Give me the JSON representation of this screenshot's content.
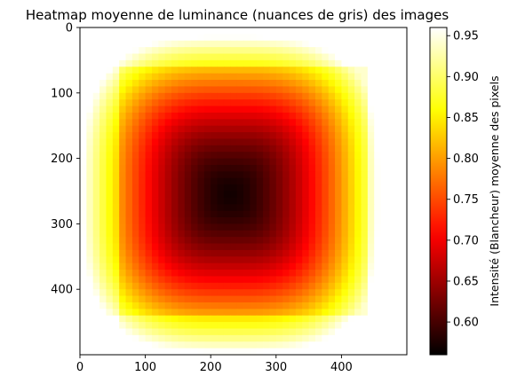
{
  "chart_data": {
    "type": "heatmap",
    "title": "Heatmap moyenne de luminance (nuances de gris) des images",
    "xlabel": "",
    "ylabel": "",
    "colormap": "hot",
    "xlim": [
      0,
      500
    ],
    "ylim": [
      500,
      0
    ],
    "xticks": [
      0,
      100,
      200,
      300,
      400
    ],
    "yticks": [
      0,
      100,
      200,
      300,
      400
    ],
    "image_size": [
      500,
      500
    ],
    "inner_border_rows": [
      62,
      435
    ],
    "inner_border_cols": [
      62,
      435
    ],
    "center": [
      230,
      255
    ],
    "value_range": [
      0.56,
      0.96
    ],
    "min_value": 0.57,
    "max_value": 0.96,
    "colorbar": {
      "label": "Intensité (Blancheur) moyenne des pixels",
      "ticks": [
        0.6,
        0.65,
        0.7,
        0.75,
        0.8,
        0.85,
        0.9,
        0.95
      ],
      "tick_labels": [
        "0.60",
        "0.65",
        "0.70",
        "0.75",
        "0.80",
        "0.85",
        "0.90",
        "0.95"
      ]
    },
    "grid": false,
    "legend": "none"
  }
}
